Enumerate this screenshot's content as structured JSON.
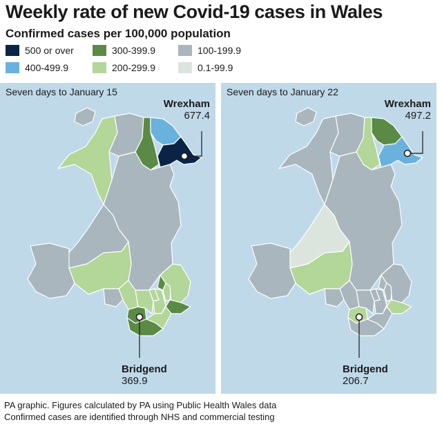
{
  "title": "Weekly rate of new Covid-19 cases in Wales",
  "subtitle": "Confirmed cases per 100,000 population",
  "legend": [
    {
      "label": "500 or over",
      "color": "#0b2446"
    },
    {
      "label": "300-399.9",
      "color": "#5a8a45"
    },
    {
      "label": "100-199.9",
      "color": "#a9b6bd"
    },
    {
      "label": "400-499.9",
      "color": "#6ab2de"
    },
    {
      "label": "200-299.9",
      "color": "#b3d699"
    },
    {
      "label": "0.1-99.9",
      "color": "#dbe5de"
    }
  ],
  "colors": {
    "sea": "#bfd9e9",
    "border": "#ffffff",
    "text": "#1a1a1a"
  },
  "panels": [
    {
      "period": "Seven days to January 15",
      "wrexham": {
        "name": "Wrexham",
        "value": "677.4"
      },
      "bridgend": {
        "name": "Bridgend",
        "value": "369.9"
      }
    },
    {
      "period": "Seven days to January 22",
      "wrexham": {
        "name": "Wrexham",
        "value": "497.2"
      },
      "bridgend": {
        "name": "Bridgend",
        "value": "206.7"
      }
    }
  ],
  "footer": {
    "line1": "PA graphic. Figures calculated by PA using Public Health Wales data",
    "line2": "Confirmed cases are identified through NHS and commercial testing"
  }
}
